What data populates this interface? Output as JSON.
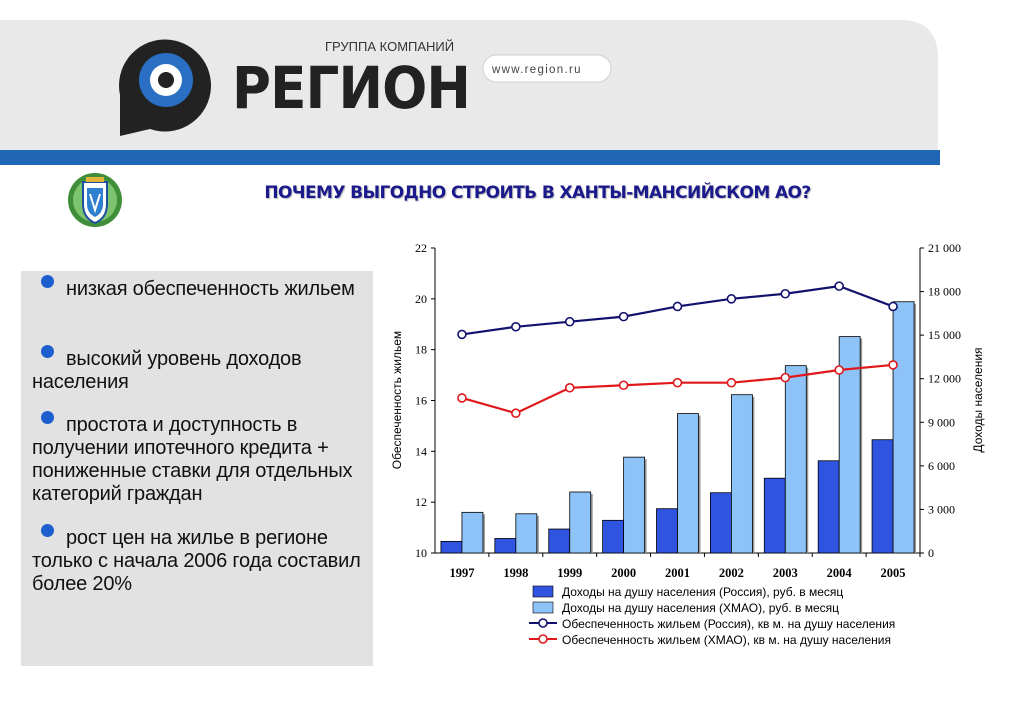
{
  "header": {
    "brand_small": "ГРУППА КОМПАНИЙ",
    "brand_name": "РЕГИОН",
    "website": "www.region.ru",
    "accent_blue": "#1f66b4",
    "dark": "#222222"
  },
  "emblem_icon": "coat-of-arms-icon",
  "page_title": "ПОЧЕМУ ВЫГОДНО СТРОИТЬ В  ХАНТЫ-МАНСИЙСКОМ АО?",
  "bullets": [
    "низкая обеспеченность жильем",
    "высокий уровень доходов населения",
    "простота и доступность в получении ипотечного кредита + пониженные ставки для отдельных категорий граждан",
    "рост цен на жилье в регионе только с начала 2006 года составил более 20%"
  ],
  "chart_data": {
    "type": "bar",
    "categories": [
      "1997",
      "1998",
      "1999",
      "2000",
      "2001",
      "2002",
      "2003",
      "2004",
      "2005"
    ],
    "ylabel": "Обеспеченность жильем",
    "y2label": "Доходы населения",
    "ylim": [
      10,
      22
    ],
    "yticks": [
      "10",
      "12",
      "14",
      "16",
      "18",
      "20",
      "22"
    ],
    "y2lim": [
      0,
      21000
    ],
    "y2ticks": [
      "0",
      "3 000",
      "6 000",
      "9 000",
      "12 000",
      "15 000",
      "18 000",
      "21 000"
    ],
    "grid": false,
    "legend_position": "bottom",
    "series": [
      {
        "name": "Доходы на душу населения (Россия), руб. в месяц",
        "kind": "bar",
        "axis": "right",
        "color": "#2f54e0",
        "values": [
          800,
          1000,
          1650,
          2250,
          3050,
          4150,
          5150,
          6350,
          7800
        ]
      },
      {
        "name": "Доходы на душу населения (ХМАО), руб. в месяц",
        "kind": "bar",
        "axis": "right",
        "color": "#8ec3f7",
        "values": [
          2800,
          2700,
          4200,
          6600,
          9600,
          10900,
          12900,
          14900,
          17300
        ]
      },
      {
        "name": "Обеспеченность жильем (Россия), кв м. на душу населения",
        "kind": "line",
        "axis": "left",
        "color": "#12126e",
        "values": [
          18.6,
          18.9,
          19.1,
          19.3,
          19.7,
          20.0,
          20.2,
          20.5,
          19.7
        ]
      },
      {
        "name": "Обеспеченность жильем (ХМАО), кв м. на душу населения",
        "kind": "line",
        "axis": "left",
        "color": "#e0181c",
        "values": [
          16.1,
          15.5,
          16.5,
          16.6,
          16.7,
          16.7,
          16.9,
          17.2,
          17.4
        ]
      }
    ]
  }
}
